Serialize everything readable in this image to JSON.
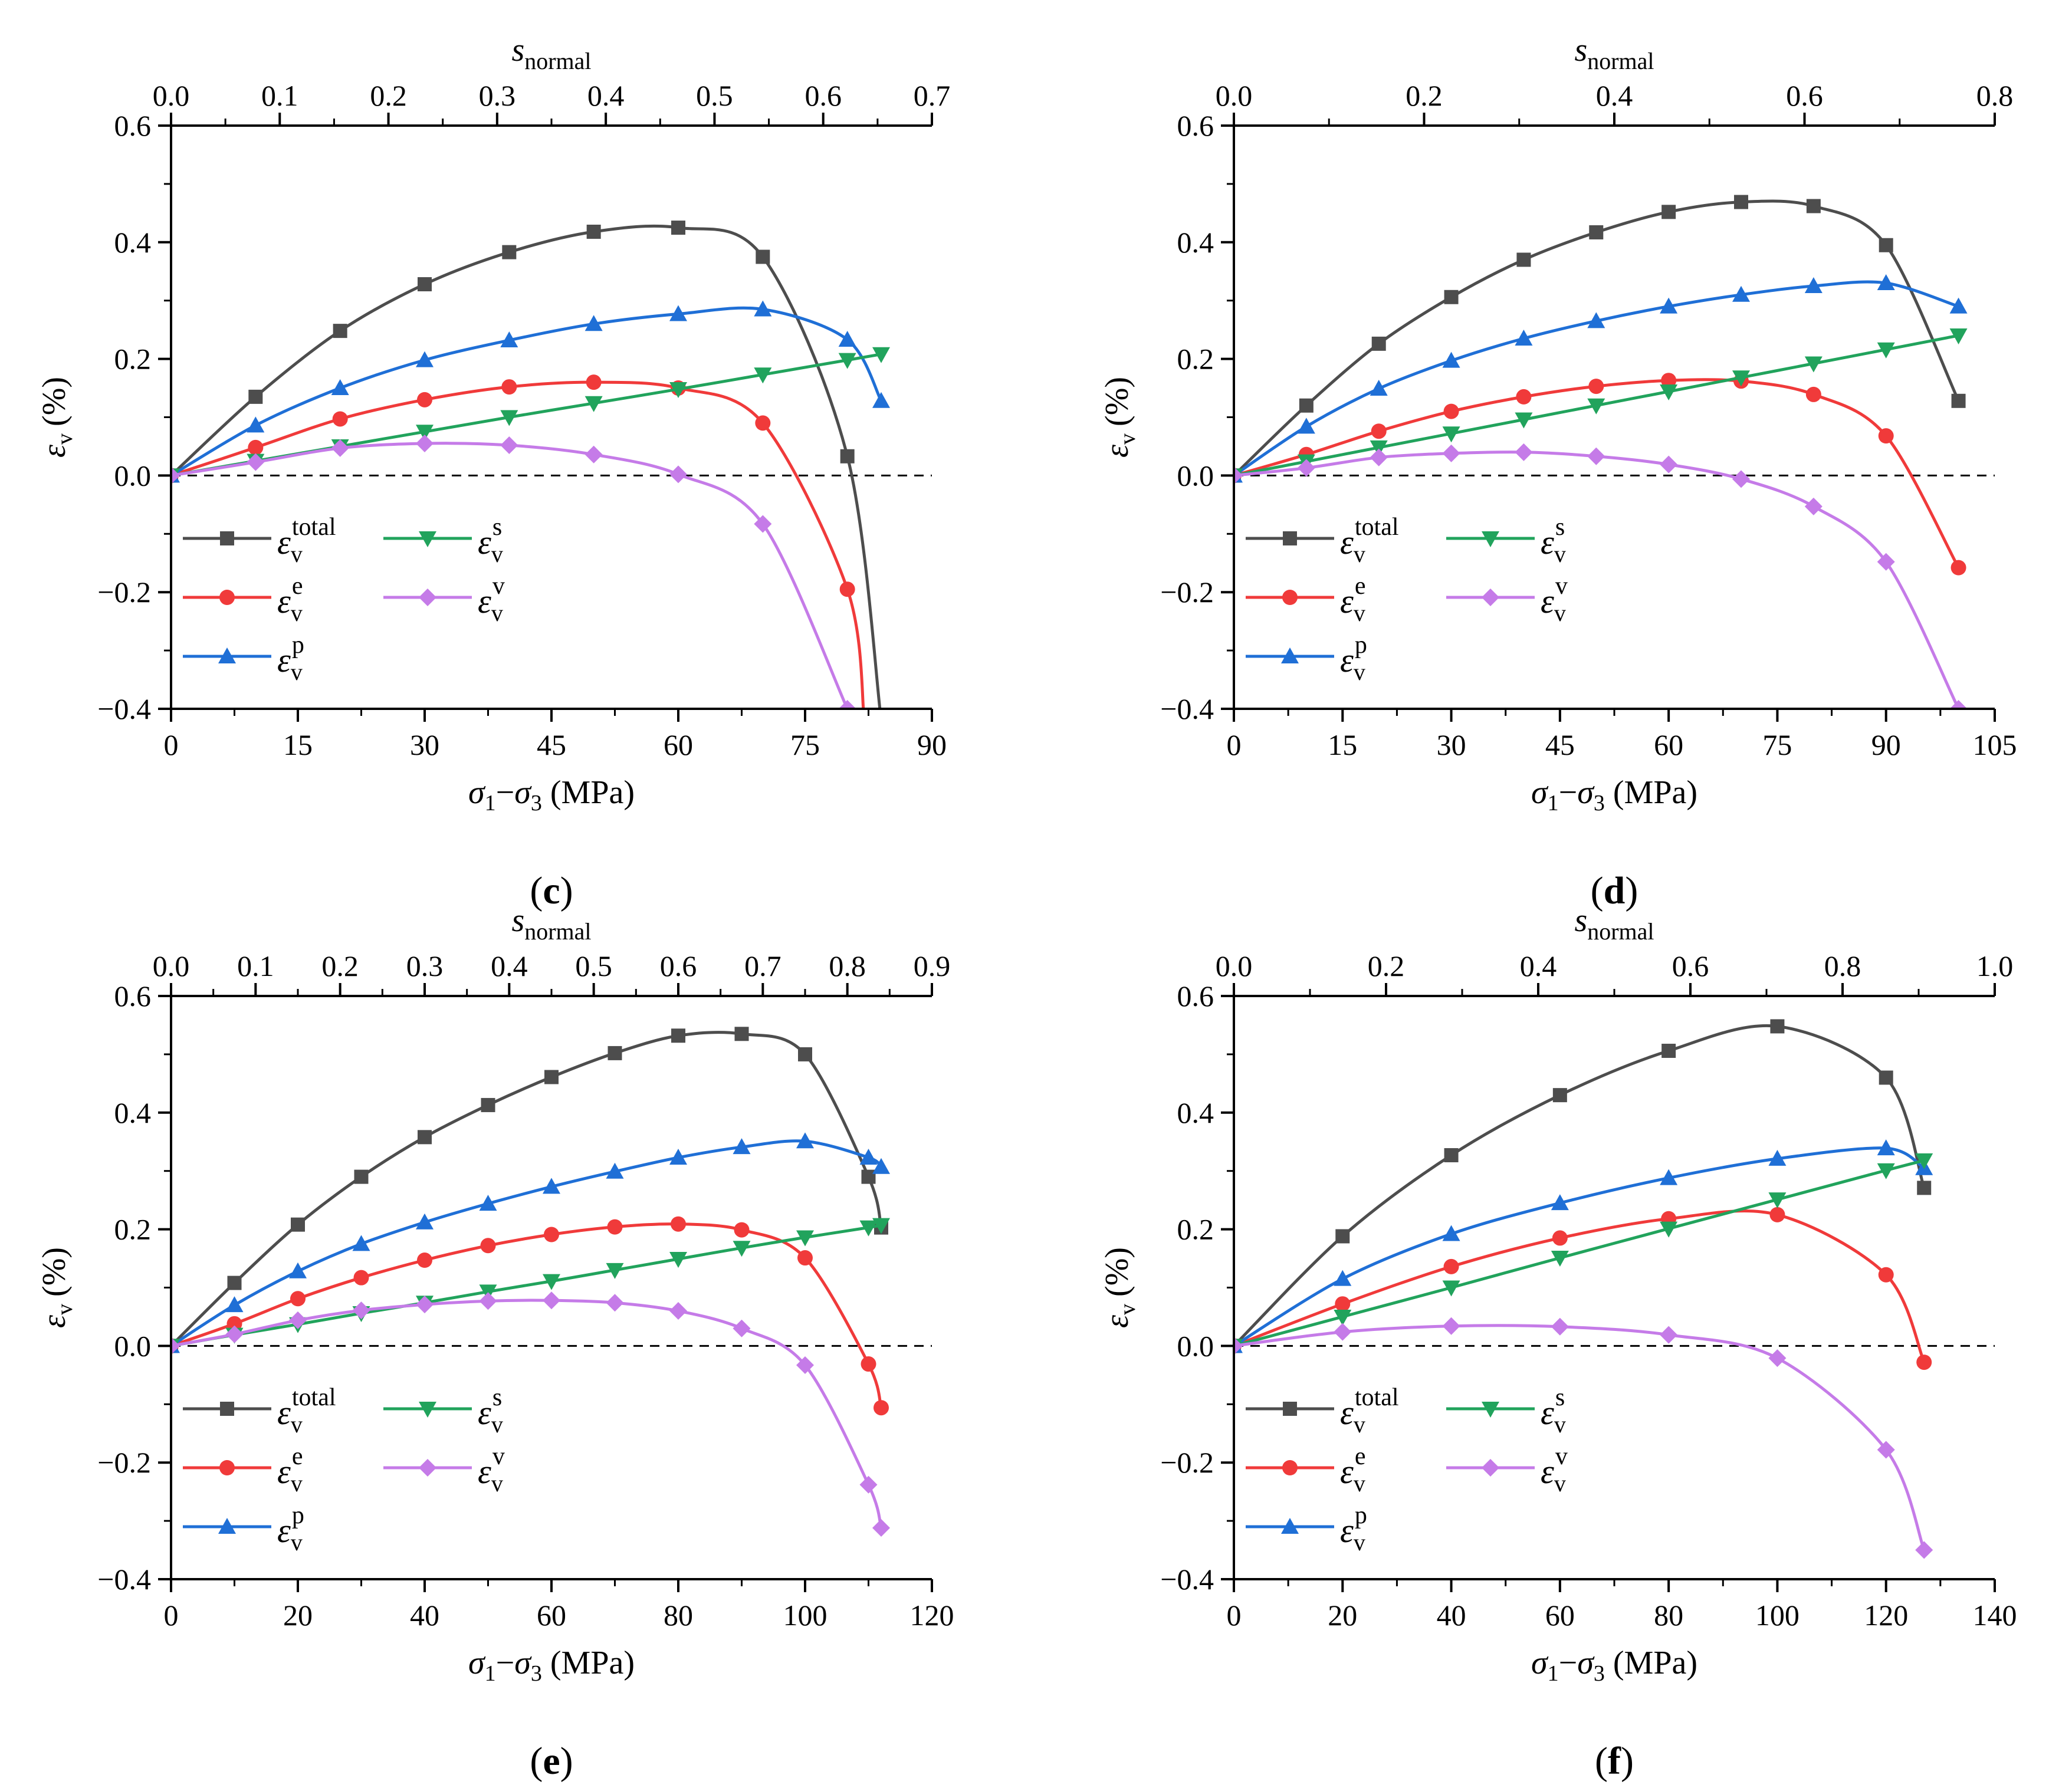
{
  "figure": {
    "series_order": [
      "total",
      "e",
      "p",
      "s",
      "v"
    ],
    "series_colors": {
      "total": "#4d4d4d",
      "e": "#f03a3a",
      "p": "#1f6fd6",
      "s": "#21a35c",
      "v": "#c57be8"
    },
    "series_markers": {
      "total": "square",
      "e": "circle",
      "p": "triangle-up",
      "s": "triangle-down",
      "v": "diamond"
    }
  },
  "chart_data": [
    {
      "panel_label": "c",
      "type": "line",
      "xlabel": "σ1−σ3 (MPa)",
      "ylabel": "εv (%)",
      "top_xlabel": "snormal",
      "xlim": [
        0,
        90
      ],
      "ylim": [
        -0.4,
        0.6
      ],
      "xticks": [
        "0",
        "15",
        "30",
        "45",
        "60",
        "75",
        "90"
      ],
      "yticks": [
        "−0.4",
        "−0.2",
        "0.0",
        "0.2",
        "0.4",
        "0.6"
      ],
      "top_xlim": [
        0,
        0.7
      ],
      "top_xticks": [
        "0.0",
        "0.1",
        "0.2",
        "0.3",
        "0.4",
        "0.5",
        "0.6",
        "0.7"
      ],
      "series": [
        {
          "key": "total",
          "name": "εv total",
          "x": [
            0,
            10,
            20,
            30,
            40,
            50,
            60,
            70,
            80,
            84
          ],
          "values": [
            0,
            0.135,
            0.248,
            0.328,
            0.383,
            0.418,
            0.425,
            0.375,
            0.033,
            -0.42
          ]
        },
        {
          "key": "e",
          "name": "εv e",
          "x": [
            0,
            10,
            20,
            30,
            40,
            50,
            60,
            70,
            80,
            82
          ],
          "values": [
            0,
            0.048,
            0.097,
            0.13,
            0.152,
            0.16,
            0.15,
            0.09,
            -0.195,
            -0.42
          ]
        },
        {
          "key": "p",
          "name": "εv p",
          "x": [
            0,
            10,
            20,
            30,
            40,
            50,
            60,
            70,
            80,
            84
          ],
          "values": [
            0,
            0.086,
            0.15,
            0.198,
            0.232,
            0.26,
            0.277,
            0.285,
            0.233,
            0.128
          ]
        },
        {
          "key": "s",
          "name": "εv s",
          "x": [
            0,
            10,
            20,
            30,
            40,
            50,
            60,
            70,
            80,
            84
          ],
          "values": [
            0,
            0.025,
            0.05,
            0.075,
            0.1,
            0.124,
            0.148,
            0.173,
            0.198,
            0.208
          ]
        },
        {
          "key": "v",
          "name": "εv v",
          "x": [
            0,
            10,
            20,
            30,
            40,
            50,
            60,
            70,
            80
          ],
          "values": [
            0,
            0.023,
            0.047,
            0.055,
            0.052,
            0.036,
            0.002,
            -0.083,
            -0.4
          ]
        }
      ]
    },
    {
      "panel_label": "d",
      "type": "line",
      "xlabel": "σ1−σ3 (MPa)",
      "ylabel": "εv (%)",
      "top_xlabel": "snormal",
      "xlim": [
        0,
        105
      ],
      "ylim": [
        -0.4,
        0.6
      ],
      "xticks": [
        "0",
        "15",
        "30",
        "45",
        "60",
        "75",
        "90",
        "105"
      ],
      "yticks": [
        "−0.4",
        "−0.2",
        "0.0",
        "0.2",
        "0.4",
        "0.6"
      ],
      "top_xlim": [
        0,
        0.8
      ],
      "top_xticks": [
        "0.0",
        "0.2",
        "0.4",
        "0.6",
        "0.8"
      ],
      "series": [
        {
          "key": "total",
          "name": "εv total",
          "x": [
            0,
            10,
            20,
            30,
            40,
            50,
            60,
            70,
            80,
            90,
            100
          ],
          "values": [
            0,
            0.12,
            0.226,
            0.306,
            0.37,
            0.417,
            0.452,
            0.469,
            0.462,
            0.395,
            0.128
          ]
        },
        {
          "key": "e",
          "name": "εv e",
          "x": [
            0,
            10,
            20,
            30,
            40,
            50,
            60,
            70,
            80,
            90,
            100
          ],
          "values": [
            0,
            0.036,
            0.076,
            0.11,
            0.135,
            0.153,
            0.163,
            0.162,
            0.139,
            0.068,
            -0.158
          ]
        },
        {
          "key": "p",
          "name": "εv p",
          "x": [
            0,
            10,
            20,
            30,
            40,
            50,
            60,
            70,
            80,
            90,
            100
          ],
          "values": [
            0,
            0.084,
            0.149,
            0.197,
            0.235,
            0.265,
            0.29,
            0.31,
            0.325,
            0.33,
            0.29
          ]
        },
        {
          "key": "s",
          "name": "εv s",
          "x": [
            0,
            10,
            20,
            30,
            40,
            50,
            60,
            70,
            80,
            90,
            100
          ],
          "values": [
            0,
            0.024,
            0.048,
            0.072,
            0.096,
            0.12,
            0.144,
            0.168,
            0.192,
            0.216,
            0.24
          ]
        },
        {
          "key": "v",
          "name": "εv v",
          "x": [
            0,
            10,
            20,
            30,
            40,
            50,
            60,
            70,
            80,
            90,
            100
          ],
          "values": [
            0,
            0.013,
            0.031,
            0.038,
            0.04,
            0.033,
            0.019,
            -0.006,
            -0.053,
            -0.148,
            -0.4
          ]
        }
      ]
    },
    {
      "panel_label": "e",
      "type": "line",
      "xlabel": "σ1−σ3 (MPa)",
      "ylabel": "εv (%)",
      "top_xlabel": "snormal",
      "xlim": [
        0,
        120
      ],
      "ylim": [
        -0.4,
        0.6
      ],
      "xticks": [
        "0",
        "20",
        "40",
        "60",
        "80",
        "100",
        "120"
      ],
      "yticks": [
        "−0.4",
        "−0.2",
        "0.0",
        "0.2",
        "0.4",
        "0.6"
      ],
      "top_xlim": [
        0,
        0.9
      ],
      "top_xticks": [
        "0.0",
        "0.1",
        "0.2",
        "0.3",
        "0.4",
        "0.5",
        "0.6",
        "0.7",
        "0.8",
        "0.9"
      ],
      "series": [
        {
          "key": "total",
          "name": "εv total",
          "x": [
            0,
            10,
            20,
            30,
            40,
            50,
            60,
            70,
            80,
            90,
            100,
            110,
            112
          ],
          "values": [
            0,
            0.108,
            0.208,
            0.29,
            0.358,
            0.413,
            0.461,
            0.502,
            0.532,
            0.535,
            0.5,
            0.29,
            0.203
          ]
        },
        {
          "key": "e",
          "name": "εv e",
          "x": [
            0,
            10,
            20,
            30,
            40,
            50,
            60,
            70,
            80,
            90,
            100,
            110,
            112
          ],
          "values": [
            0,
            0.038,
            0.081,
            0.117,
            0.147,
            0.172,
            0.191,
            0.204,
            0.209,
            0.199,
            0.151,
            -0.031,
            -0.106
          ]
        },
        {
          "key": "p",
          "name": "εv p",
          "x": [
            0,
            10,
            20,
            30,
            40,
            50,
            60,
            70,
            80,
            90,
            100,
            110,
            112
          ],
          "values": [
            0,
            0.07,
            0.128,
            0.175,
            0.212,
            0.244,
            0.273,
            0.299,
            0.323,
            0.341,
            0.351,
            0.323,
            0.307
          ]
        },
        {
          "key": "s",
          "name": "εv s",
          "x": [
            0,
            10,
            20,
            30,
            40,
            50,
            60,
            70,
            80,
            90,
            100,
            110,
            112
          ],
          "values": [
            0,
            0.019,
            0.037,
            0.056,
            0.074,
            0.093,
            0.111,
            0.13,
            0.149,
            0.168,
            0.186,
            0.203,
            0.207
          ]
        },
        {
          "key": "v",
          "name": "εv v",
          "x": [
            0,
            10,
            20,
            30,
            40,
            50,
            60,
            70,
            80,
            90,
            100,
            110,
            112
          ],
          "values": [
            0,
            0.02,
            0.044,
            0.061,
            0.071,
            0.077,
            0.078,
            0.074,
            0.06,
            0.03,
            -0.033,
            -0.238,
            -0.312
          ]
        }
      ]
    },
    {
      "panel_label": "f",
      "type": "line",
      "xlabel": "σ1−σ3 (MPa)",
      "ylabel": "εv (%)",
      "top_xlabel": "snormal",
      "xlim": [
        0,
        140
      ],
      "ylim": [
        -0.4,
        0.6
      ],
      "xticks": [
        "0",
        "20",
        "40",
        "60",
        "80",
        "100",
        "120",
        "140"
      ],
      "yticks": [
        "−0.4",
        "−0.2",
        "0.0",
        "0.2",
        "0.4",
        "0.6"
      ],
      "top_xlim": [
        0,
        1.0
      ],
      "top_xticks": [
        "0.0",
        "0.2",
        "0.4",
        "0.6",
        "0.8",
        "1.0"
      ],
      "series": [
        {
          "key": "total",
          "name": "εv total",
          "x": [
            0,
            20,
            40,
            60,
            80,
            100,
            120,
            127
          ],
          "values": [
            0,
            0.188,
            0.327,
            0.43,
            0.506,
            0.548,
            0.46,
            0.271
          ]
        },
        {
          "key": "e",
          "name": "εv e",
          "x": [
            0,
            20,
            40,
            60,
            80,
            100,
            120,
            127
          ],
          "values": [
            0,
            0.072,
            0.136,
            0.185,
            0.218,
            0.225,
            0.122,
            -0.028
          ]
        },
        {
          "key": "p",
          "name": "εv p",
          "x": [
            0,
            20,
            40,
            60,
            80,
            100,
            120,
            127
          ],
          "values": [
            0,
            0.115,
            0.192,
            0.245,
            0.288,
            0.321,
            0.339,
            0.305
          ]
        },
        {
          "key": "s",
          "name": "εv s",
          "x": [
            0,
            20,
            40,
            60,
            80,
            100,
            120,
            127
          ],
          "values": [
            0,
            0.05,
            0.1,
            0.151,
            0.201,
            0.251,
            0.301,
            0.318
          ]
        },
        {
          "key": "v",
          "name": "εv v",
          "x": [
            0,
            20,
            40,
            60,
            80,
            100,
            120,
            127
          ],
          "values": [
            0,
            0.024,
            0.034,
            0.033,
            0.019,
            -0.021,
            -0.178,
            -0.35
          ]
        }
      ]
    }
  ],
  "labels": {
    "epsilon": "ε",
    "v_sub": "v",
    "percent": "(%)",
    "sigma": "σ",
    "sub1": "1",
    "dash": "−",
    "sub3": "3",
    "mpa": " (MPa)",
    "s": "s",
    "normal_sub": "normal",
    "paren_open": "(",
    "paren_close": ")",
    "legend_sup": {
      "total": "total",
      "e": "e",
      "p": "p",
      "s": "s",
      "v": "v"
    }
  }
}
